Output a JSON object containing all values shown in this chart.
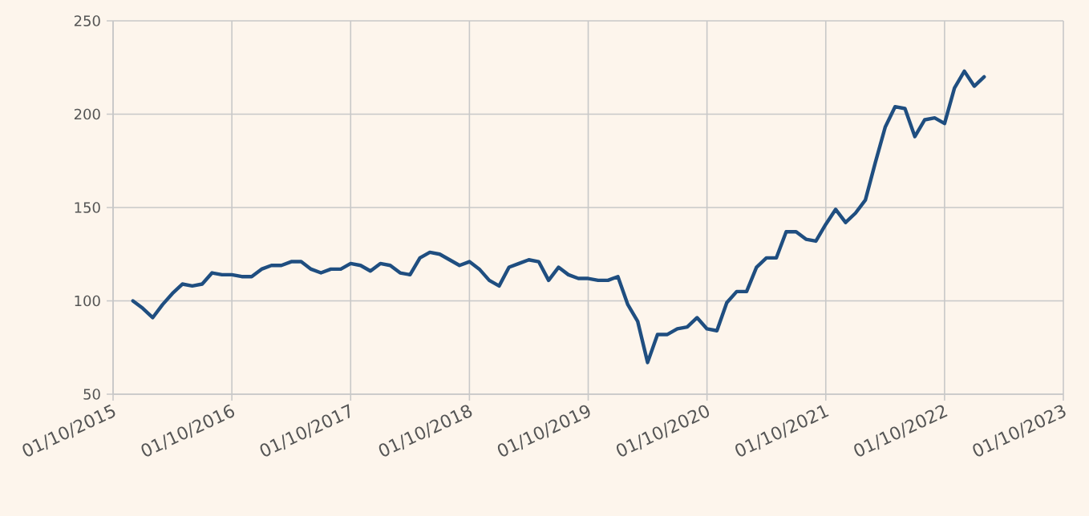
{
  "chart_data": {
    "type": "line",
    "x": [
      "2015-12",
      "2016-01",
      "2016-02",
      "2016-03",
      "2016-04",
      "2016-05",
      "2016-06",
      "2016-07",
      "2016-08",
      "2016-09",
      "2016-10",
      "2016-11",
      "2016-12",
      "2017-01",
      "2017-02",
      "2017-03",
      "2017-04",
      "2017-05",
      "2017-06",
      "2017-07",
      "2017-08",
      "2017-09",
      "2017-10",
      "2017-11",
      "2017-12",
      "2018-01",
      "2018-02",
      "2018-03",
      "2018-04",
      "2018-05",
      "2018-06",
      "2018-07",
      "2018-08",
      "2018-09",
      "2018-10",
      "2018-11",
      "2018-12",
      "2019-01",
      "2019-02",
      "2019-03",
      "2019-04",
      "2019-05",
      "2019-06",
      "2019-07",
      "2019-08",
      "2019-09",
      "2019-10",
      "2019-11",
      "2019-12",
      "2020-01",
      "2020-02",
      "2020-03",
      "2020-04",
      "2020-05",
      "2020-06",
      "2020-07",
      "2020-08",
      "2020-09",
      "2020-10",
      "2020-11",
      "2020-12",
      "2021-01",
      "2021-02",
      "2021-03",
      "2021-04",
      "2021-05",
      "2021-06",
      "2021-07",
      "2021-08",
      "2021-09",
      "2021-10",
      "2021-11",
      "2021-12",
      "2022-01",
      "2022-02",
      "2022-03",
      "2022-04",
      "2022-05",
      "2022-06",
      "2022-07",
      "2022-08",
      "2022-09",
      "2022-10",
      "2022-11",
      "2022-12",
      "2023-01",
      "2023-02"
    ],
    "series": [
      {
        "color": "#1f4e80",
        "values": [
          100,
          96,
          91,
          98,
          104,
          109,
          108,
          109,
          115,
          114,
          114,
          113,
          113,
          117,
          119,
          119,
          121,
          121,
          117,
          115,
          117,
          117,
          120,
          119,
          116,
          120,
          119,
          115,
          114,
          123,
          126,
          125,
          122,
          119,
          121,
          117,
          111,
          108,
          118,
          120,
          122,
          121,
          111,
          118,
          114,
          112,
          112,
          111,
          111,
          113,
          98,
          89,
          67,
          82,
          82,
          85,
          86,
          91,
          85,
          84,
          99,
          105,
          105,
          118,
          123,
          123,
          137,
          137,
          133,
          132,
          141,
          149,
          142,
          147,
          154,
          174,
          193,
          204,
          203,
          188,
          197,
          198,
          195,
          214,
          223,
          215,
          220
        ]
      }
    ],
    "xlim": [
      "2015-10-01",
      "2023-10-01"
    ],
    "xticks": [
      {
        "value": "2015-10-01",
        "label": "01/10/2015"
      },
      {
        "value": "2016-10-01",
        "label": "01/10/2016"
      },
      {
        "value": "2017-10-01",
        "label": "01/10/2017"
      },
      {
        "value": "2018-10-01",
        "label": "01/10/2018"
      },
      {
        "value": "2019-10-01",
        "label": "01/10/2019"
      },
      {
        "value": "2020-10-01",
        "label": "01/10/2020"
      },
      {
        "value": "2021-10-01",
        "label": "01/10/2021"
      },
      {
        "value": "2022-10-01",
        "label": "01/10/2022"
      },
      {
        "value": "2023-10-01",
        "label": "01/10/2023"
      }
    ],
    "ylim": [
      50,
      250
    ],
    "yticks": [
      50,
      100,
      150,
      200,
      250
    ],
    "grid": true,
    "marker": "none",
    "line_style": "solid"
  }
}
